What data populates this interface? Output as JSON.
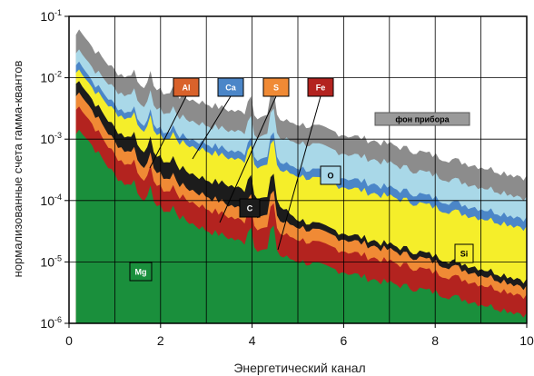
{
  "chart_data": {
    "type": "area",
    "title": "",
    "xlabel": "Энергетический канал",
    "ylabel": "нормализованные счета гамма-квантов",
    "xlim": [
      0,
      10
    ],
    "ylim": [
      1e-06,
      0.1
    ],
    "y_scale": "log",
    "grid": true,
    "x_ticks": [
      "0",
      "2",
      "4",
      "6",
      "8",
      "10"
    ],
    "y_ticks": [
      {
        "base": "10",
        "exp": "-1"
      },
      {
        "base": "10",
        "exp": "-2"
      },
      {
        "base": "10",
        "exp": "-3"
      },
      {
        "base": "10",
        "exp": "-4"
      },
      {
        "base": "10",
        "exp": "-5"
      },
      {
        "base": "10",
        "exp": "-6"
      }
    ],
    "x": [
      0.15,
      0.25,
      0.5,
      1,
      1.5,
      2,
      2.5,
      3,
      3.5,
      4,
      4.5,
      5,
      5.5,
      6,
      6.5,
      7,
      7.5,
      8,
      8.5,
      9,
      9.5,
      10
    ],
    "series": [
      {
        "name": "Mg",
        "color": "#1a8f3c",
        "values": [
          0.0012,
          0.0015,
          0.0008,
          0.00026,
          0.00013,
          7.5e-05,
          5e-05,
          3.3e-05,
          2.5e-05,
          1.8e-05,
          1.3e-05,
          1.05e-05,
          8.5e-06,
          7e-06,
          5.5e-06,
          4.5e-06,
          3.8e-06,
          3.2e-06,
          2.6e-06,
          2.1e-06,
          1.7e-06,
          1.4e-06
        ]
      },
      {
        "name": "Fe",
        "color": "#b3231f",
        "values": [
          0.003,
          0.0035,
          0.0018,
          0.00055,
          0.00028,
          0.00016,
          0.00011,
          7.5e-05,
          5.5e-05,
          4e-05,
          3e-05,
          2.4e-05,
          1.9e-05,
          1.55e-05,
          1.25e-05,
          1e-05,
          8.3e-06,
          6.8e-06,
          5.5e-06,
          4.4e-06,
          3.5e-06,
          2.8e-06
        ]
      },
      {
        "name": "S",
        "color": "#f08a35",
        "values": [
          0.005,
          0.006,
          0.003,
          0.0009,
          0.00045,
          0.00026,
          0.00017,
          0.00012,
          8.5e-05,
          6.3e-05,
          4.8e-05,
          3.8e-05,
          3e-05,
          2.4e-05,
          1.95e-05,
          1.55e-05,
          1.25e-05,
          1e-05,
          8e-06,
          6.3e-06,
          5e-06,
          3.9e-06
        ]
      },
      {
        "name": "C",
        "color": "#1c1c1c",
        "values": [
          0.008,
          0.009,
          0.0045,
          0.0015,
          0.0008,
          0.00048,
          0.00032,
          0.00022,
          0.00018,
          0.00013,
          9e-05,
          5e-05,
          3.8e-05,
          3e-05,
          2.4e-05,
          1.9e-05,
          1.55e-05,
          1.25e-05,
          1e-05,
          8e-06,
          6.3e-06,
          5e-06
        ]
      },
      {
        "name": "Si",
        "color": "#f5ee2a",
        "values": [
          0.012,
          0.014,
          0.007,
          0.0028,
          0.0017,
          0.0011,
          0.00085,
          0.00065,
          0.0005,
          0.0004,
          0.00032,
          0.00026,
          0.00021,
          0.00017,
          0.00014,
          0.000115,
          9.5e-05,
          7.8e-05,
          6.4e-05,
          5.3e-05,
          4.4e-05,
          3.6e-05
        ]
      },
      {
        "name": "Ca",
        "color": "#4b86c8",
        "values": [
          0.016,
          0.019,
          0.009,
          0.0036,
          0.0021,
          0.0014,
          0.0011,
          0.00085,
          0.00066,
          0.00053,
          0.00043,
          0.00035,
          0.00029,
          0.00024,
          0.0002,
          0.00016,
          0.000135,
          0.00011,
          9e-05,
          7.5e-05,
          6.2e-05,
          5.1e-05
        ]
      },
      {
        "name": "O",
        "color": "#a9d8e8",
        "values": [
          0.025,
          0.03,
          0.015,
          0.0065,
          0.0042,
          0.0029,
          0.0022,
          0.0017,
          0.0014,
          0.0012,
          0.00105,
          0.0009,
          0.00075,
          0.0006,
          0.0005,
          0.0004,
          0.00032,
          0.00026,
          0.00021,
          0.00017,
          0.00014,
          0.00011
        ]
      },
      {
        "name": "фон прибора",
        "color": "#8c8c8c",
        "values": [
          0.05,
          0.065,
          0.032,
          0.013,
          0.0085,
          0.006,
          0.0048,
          0.0038,
          0.003,
          0.0025,
          0.0021,
          0.0018,
          0.0015,
          0.0012,
          0.001,
          0.00082,
          0.00066,
          0.00054,
          0.00044,
          0.00036,
          0.00029,
          0.00024
        ]
      }
    ],
    "labels": [
      {
        "text": "Al",
        "color": "#d9622b"
      },
      {
        "text": "Ca",
        "color": "#4b86c8"
      },
      {
        "text": "S",
        "color": "#f08a35"
      },
      {
        "text": "Fe",
        "color": "#b3231f"
      },
      {
        "text": "фон прибора",
        "color": "#9a9a9a"
      },
      {
        "text": "O",
        "color": "#a9d8e8"
      },
      {
        "text": "C",
        "color": "#1c1c1c"
      },
      {
        "text": "Si",
        "color": "#f5ee2a"
      },
      {
        "text": "Mg",
        "color": "#1a8f3c"
      }
    ]
  }
}
